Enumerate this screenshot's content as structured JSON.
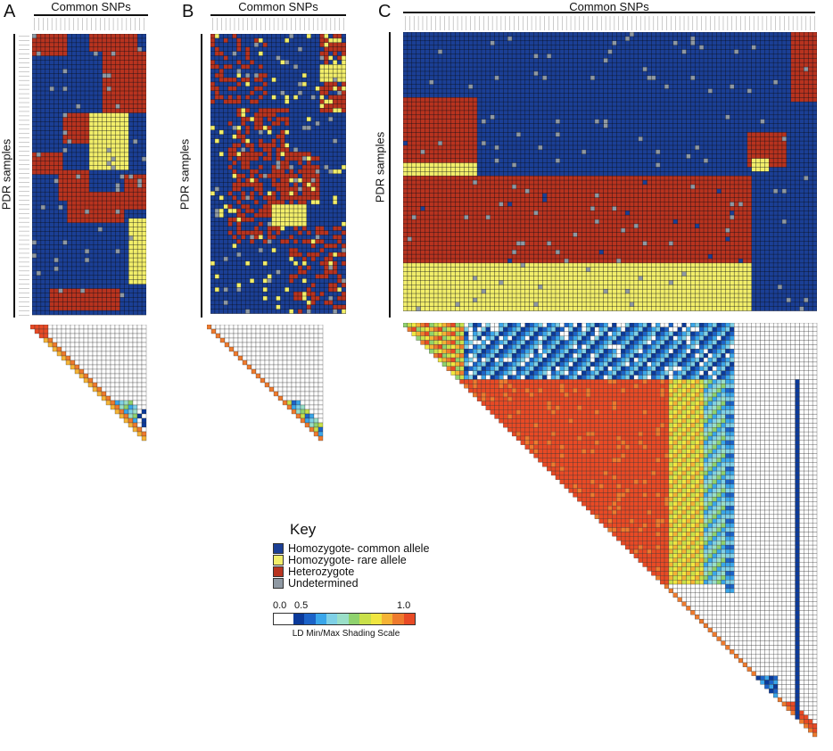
{
  "panels": [
    {
      "letter": "A",
      "column_title": "Common SNPs",
      "row_title": "PDR samples"
    },
    {
      "letter": "B",
      "column_title": "Common SNPs",
      "row_title": "PDR samples"
    },
    {
      "letter": "C",
      "column_title": "Common SNPs",
      "row_title": "PDR samples"
    }
  ],
  "key": {
    "title": "Key",
    "items": [
      {
        "label": "Homozygote- common allele",
        "color": "#1b3f95"
      },
      {
        "label": "Homozygote- rare allele",
        "color": "#f2ee6a"
      },
      {
        "label": "Heterozygote",
        "color": "#b8331f"
      },
      {
        "label": "Undetermined",
        "color": "#8f99a3"
      }
    ]
  },
  "ld_scale": {
    "title": "LD Min/Max Shading Scale",
    "min_label": "0.0",
    "mid_label": "0.5",
    "max_label": "1.0",
    "colors": [
      "#ffffff",
      "#0b3a9a",
      "#1c63c8",
      "#3aa6ea",
      "#7fd0e6",
      "#9adfc8",
      "#8fd26e",
      "#c9e04a",
      "#f0e640",
      "#f5b335",
      "#ee7a2d",
      "#e84a25"
    ]
  }
}
